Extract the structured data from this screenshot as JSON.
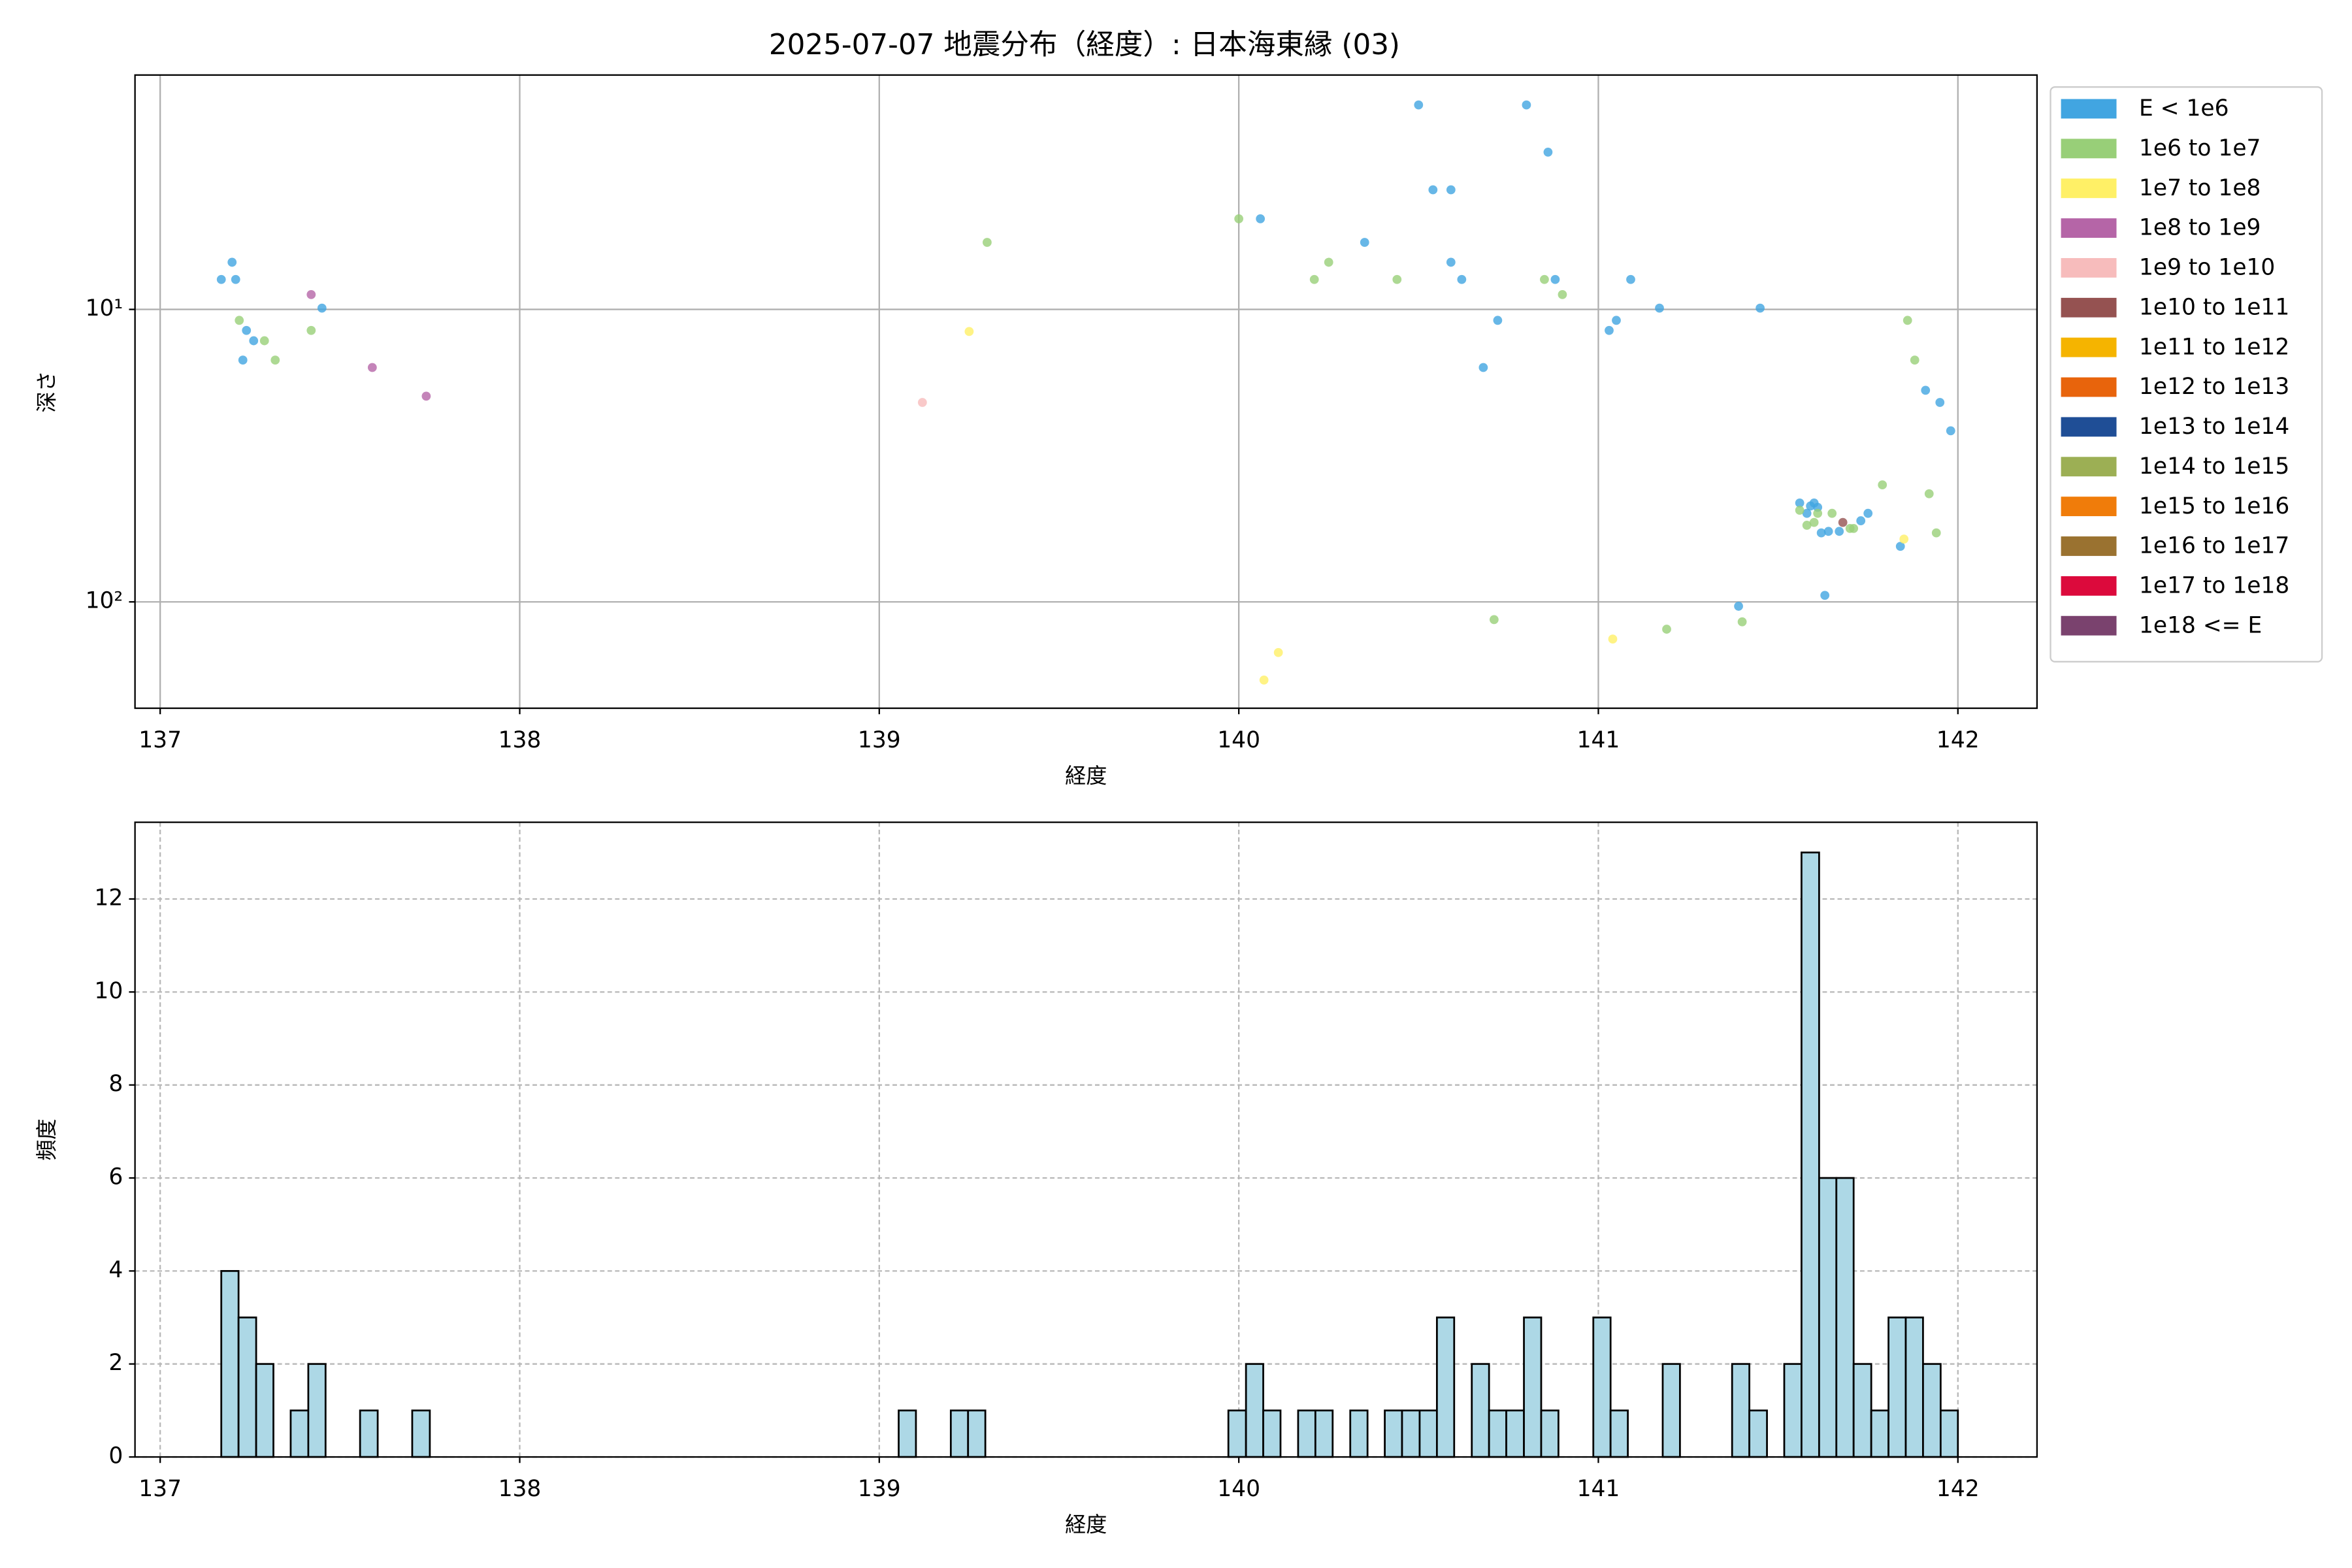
{
  "chart_data": [
    {
      "type": "scatter",
      "title": "2025-07-07 地震分布（経度）: 日本海東縁 (03)",
      "xlabel": "経度",
      "ylabel": "深さ",
      "xlim": [
        136.93,
        142.22
      ],
      "xticks": [
        137,
        138,
        139,
        140,
        141,
        142
      ],
      "ylim": [
        1.58,
        231
      ],
      "y_scale": "log",
      "y_inverted": true,
      "yticks": [
        {
          "value": 10,
          "label": "10¹"
        },
        {
          "value": 100,
          "label": "10²"
        }
      ],
      "grid": true,
      "legend": "outside right",
      "series": [
        {
          "name": "E < 1e6",
          "color": "#41a5e1",
          "x": [
            137.17,
            137.2,
            137.21,
            137.24,
            137.26,
            137.23,
            137.45,
            140.5,
            140.8,
            140.86,
            140.54,
            140.59,
            140.35,
            140.59,
            140.62,
            140.88,
            141.09,
            140.72,
            140.68,
            141.03,
            141.05,
            141.17,
            141.45,
            140.06,
            141.56,
            141.6,
            141.61,
            141.62,
            141.64,
            141.67,
            141.73,
            141.75,
            141.91,
            141.95,
            141.98,
            141.84,
            141.63,
            141.39,
            141.59,
            141.58
          ],
          "y": [
            7.9,
            6.9,
            7.9,
            11.8,
            12.8,
            14.9,
            9.9,
            2.0,
            2.0,
            2.9,
            3.9,
            3.9,
            5.9,
            6.9,
            7.9,
            7.9,
            7.9,
            10.9,
            15.8,
            11.8,
            10.9,
            9.9,
            9.9,
            4.9,
            45.9,
            45.9,
            47.5,
            58.1,
            57.4,
            57.4,
            52.8,
            49.8,
            18.9,
            20.8,
            26,
            64.6,
            95,
            103.5,
            47,
            49.8
          ]
        },
        {
          "name": "1e6 to 1e7",
          "color": "#98cf78",
          "x": [
            137.22,
            137.29,
            137.32,
            137.42,
            139.3,
            140.0,
            140.21,
            140.25,
            140.44,
            140.85,
            140.9,
            140.71,
            141.19,
            141.4,
            141.86,
            141.88,
            141.79,
            141.92,
            141.94,
            141.56,
            141.58,
            141.6,
            141.61,
            141.65,
            141.7,
            141.71
          ],
          "y": [
            10.9,
            12.8,
            14.9,
            11.8,
            5.9,
            4.9,
            7.9,
            6.9,
            7.9,
            7.9,
            8.9,
            115,
            124,
            117,
            10.9,
            14.9,
            39.8,
            42.7,
            58.1,
            48.6,
            54.7,
            53.5,
            49.8,
            49.8,
            56.1,
            56.1
          ]
        },
        {
          "name": "1e7 to 1e8",
          "color": "#fff066",
          "x": [
            139.25,
            140.11,
            140.07,
            141.04,
            141.85
          ],
          "y": [
            11.9,
            149,
            185,
            134,
            61
          ]
        },
        {
          "name": "1e8 to 1e9",
          "color": "#b565a7",
          "x": [
            137.42,
            137.59,
            137.74
          ],
          "y": [
            8.9,
            15.8,
            19.8
          ]
        },
        {
          "name": "1e9 to 1e10",
          "color": "#f7bcbc",
          "x": [
            139.12
          ],
          "y": [
            20.8
          ]
        },
        {
          "name": "1e10 to 1e11",
          "color": "#955251",
          "x": [
            141.68
          ],
          "y": [
            53.5
          ]
        },
        {
          "name": "1e11 to 1e12",
          "color": "#f5b400",
          "x": [],
          "y": []
        },
        {
          "name": "1e12 to 1e13",
          "color": "#e8640c",
          "x": [],
          "y": []
        },
        {
          "name": "1e13 to 1e14",
          "color": "#1f4e96",
          "x": [],
          "y": []
        },
        {
          "name": "1e14 to 1e15",
          "color": "#9caf54",
          "x": [],
          "y": []
        },
        {
          "name": "1e15 to 1e16",
          "color": "#f07c0a",
          "x": [],
          "y": []
        },
        {
          "name": "1e16 to 1e17",
          "color": "#9a7230",
          "x": [],
          "y": []
        },
        {
          "name": "1e17 to 1e18",
          "color": "#dc0a3c",
          "x": [],
          "y": []
        },
        {
          "name": "1e18 <= E",
          "color": "#7a426e",
          "x": [],
          "y": []
        }
      ]
    },
    {
      "type": "histogram",
      "xlabel": "経度",
      "ylabel": "頻度",
      "color": "#add8e6",
      "edgecolor": "#000000",
      "xlim": [
        136.93,
        142.22
      ],
      "xticks": [
        137,
        138,
        139,
        140,
        141,
        142
      ],
      "ylim": [
        0,
        13.65
      ],
      "yticks": [
        0,
        2,
        4,
        6,
        8,
        10,
        12
      ],
      "grid": true,
      "grid_style": "dashed",
      "bins": [
        137.17,
        137.218,
        137.267,
        137.315,
        137.363,
        137.412,
        137.46,
        137.508,
        137.556,
        137.605,
        137.653,
        137.701,
        137.75,
        137.798,
        137.846,
        137.895,
        137.943,
        137.991,
        138.039,
        138.088,
        138.136,
        138.184,
        138.233,
        138.281,
        138.329,
        138.378,
        138.426,
        138.474,
        138.522,
        138.571,
        138.619,
        138.667,
        138.716,
        138.764,
        138.812,
        138.861,
        138.909,
        138.957,
        139.005,
        139.054,
        139.102,
        139.15,
        139.199,
        139.247,
        139.295,
        139.344,
        139.392,
        139.44,
        139.488,
        139.537,
        139.585,
        139.633,
        139.682,
        139.73,
        139.778,
        139.827,
        139.875,
        139.923,
        139.971,
        140.02,
        140.068,
        140.116,
        140.165,
        140.213,
        140.261,
        140.31,
        140.358,
        140.406,
        140.454,
        140.503,
        140.551,
        140.599,
        140.648,
        140.696,
        140.744,
        140.793,
        140.841,
        140.889,
        140.937,
        140.986,
        141.034,
        141.082,
        141.131,
        141.179,
        141.227,
        141.276,
        141.324,
        141.372,
        141.42,
        141.469,
        141.517,
        141.565,
        141.614,
        141.662,
        141.71,
        141.759,
        141.807,
        141.855,
        141.903,
        141.952,
        142.0
      ],
      "counts": [
        4,
        3,
        2,
        0,
        1,
        2,
        0,
        0,
        1,
        0,
        0,
        1,
        0,
        0,
        0,
        0,
        0,
        0,
        0,
        0,
        0,
        0,
        0,
        0,
        0,
        0,
        0,
        0,
        0,
        0,
        0,
        0,
        0,
        0,
        0,
        0,
        0,
        0,
        0,
        1,
        0,
        0,
        1,
        1,
        0,
        0,
        0,
        0,
        0,
        0,
        0,
        0,
        0,
        0,
        0,
        0,
        0,
        0,
        1,
        2,
        1,
        0,
        1,
        1,
        0,
        1,
        0,
        1,
        1,
        1,
        3,
        0,
        2,
        1,
        1,
        3,
        1,
        0,
        0,
        3,
        1,
        0,
        0,
        2,
        0,
        0,
        0,
        2,
        1,
        0,
        2,
        13,
        6,
        6,
        2,
        1,
        3,
        3,
        2,
        1
      ]
    }
  ]
}
